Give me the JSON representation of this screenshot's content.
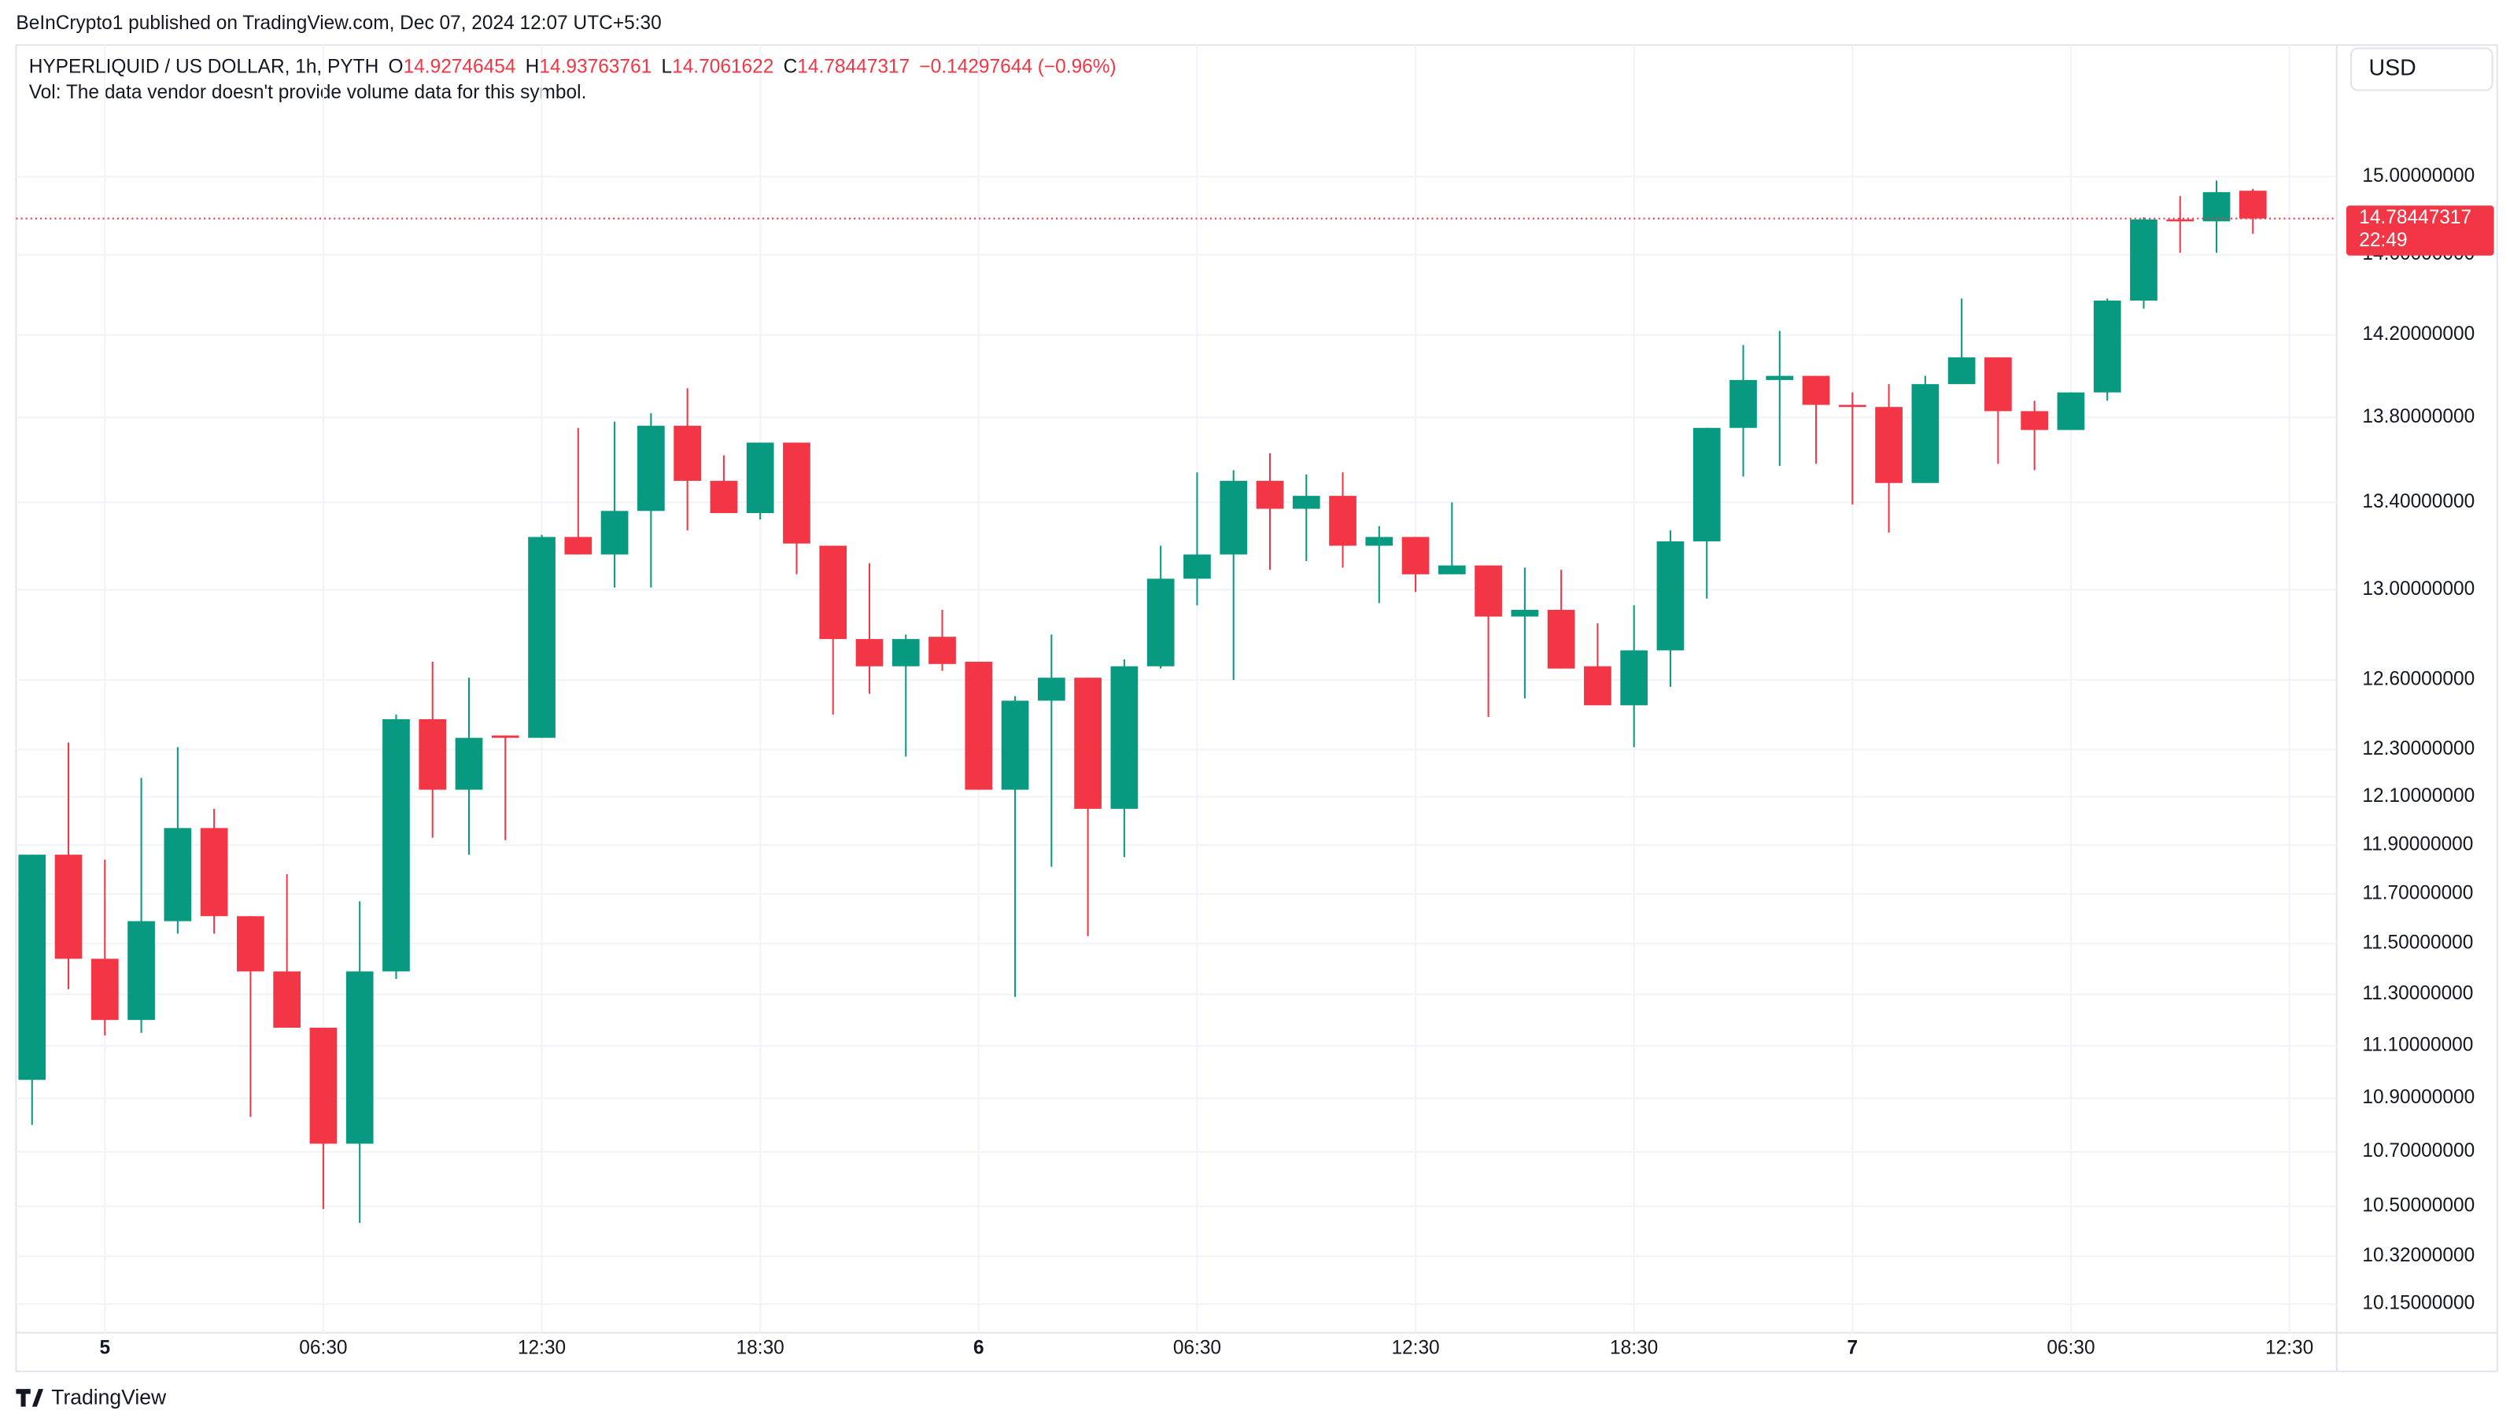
{
  "page": {
    "published": "BeInCrypto1 published on TradingView.com, Dec 07, 2024 12:07 UTC+5:30",
    "currency": "USD",
    "brand": "TradingView"
  },
  "chart_data": {
    "type": "candlestick",
    "symbol": "HYPERLIQUID / US DOLLAR, 1h, PYTH",
    "ohlc_labels": [
      "O",
      "H",
      "L",
      "C"
    ],
    "change": "−0.14297644 (−0.96%)",
    "volume_note": "Vol: The data vendor doesn't provide volume data for this symbol.",
    "countdown": "22:49",
    "up_color": "#089981",
    "down_color": "#f23645",
    "log_scale": true,
    "grid": true,
    "open": [
      10.97,
      11.86,
      11.44,
      11.2,
      11.59,
      11.97,
      11.61,
      11.39,
      11.17,
      10.73,
      11.39,
      12.43,
      12.13,
      12.36,
      12.35,
      13.24,
      13.16,
      13.36,
      13.76,
      13.5,
      13.35,
      13.68,
      13.2,
      12.78,
      12.66,
      12.79,
      12.68,
      12.13,
      12.51,
      12.61,
      12.05,
      12.66,
      13.05,
      13.16,
      13.5,
      13.37,
      13.43,
      13.2,
      13.24,
      13.07,
      13.11,
      12.88,
      12.91,
      12.66,
      12.49,
      12.73,
      13.22,
      13.75,
      13.98,
      14.0,
      13.86,
      13.85,
      13.49,
      13.96,
      14.09,
      13.83,
      13.74,
      13.92,
      14.37,
      14.78,
      14.77,
      14.92746454
    ],
    "high": [
      11.86,
      12.33,
      11.84,
      12.18,
      12.31,
      12.05,
      11.61,
      11.78,
      11.17,
      11.67,
      12.45,
      12.68,
      12.61,
      12.36,
      13.25,
      13.75,
      13.78,
      13.82,
      13.94,
      13.62,
      13.68,
      13.68,
      13.2,
      13.12,
      12.8,
      12.91,
      12.68,
      12.53,
      12.8,
      12.61,
      12.69,
      13.2,
      13.54,
      13.55,
      13.63,
      13.53,
      13.54,
      13.29,
      13.24,
      13.4,
      13.11,
      13.1,
      13.09,
      12.85,
      12.93,
      13.27,
      13.75,
      14.15,
      14.22,
      14.0,
      13.92,
      13.96,
      14.0,
      14.38,
      14.09,
      13.88,
      13.92,
      14.38,
      14.79,
      14.9,
      14.98,
      14.93763761
    ],
    "low": [
      10.8,
      11.32,
      11.14,
      11.15,
      11.54,
      11.54,
      10.83,
      11.17,
      10.49,
      10.44,
      11.36,
      11.93,
      11.86,
      11.92,
      12.35,
      13.16,
      13.01,
      13.01,
      13.27,
      13.35,
      13.32,
      13.07,
      12.45,
      12.54,
      12.27,
      12.64,
      12.13,
      11.29,
      11.81,
      11.53,
      11.85,
      12.65,
      12.93,
      12.6,
      13.09,
      13.13,
      13.1,
      12.94,
      12.99,
      13.07,
      12.44,
      12.52,
      12.65,
      12.49,
      12.31,
      12.57,
      12.96,
      13.52,
      13.57,
      13.58,
      13.39,
      13.26,
      13.49,
      13.96,
      13.58,
      13.55,
      13.74,
      13.88,
      14.33,
      14.61,
      14.61,
      14.7061622
    ],
    "close": [
      11.86,
      11.44,
      11.2,
      11.59,
      11.97,
      11.61,
      11.39,
      11.17,
      10.73,
      11.39,
      12.43,
      12.13,
      12.35,
      12.35,
      13.24,
      13.16,
      13.36,
      13.76,
      13.5,
      13.35,
      13.68,
      13.21,
      12.78,
      12.66,
      12.78,
      12.67,
      12.13,
      12.51,
      12.61,
      12.05,
      12.66,
      13.05,
      13.16,
      13.5,
      13.37,
      13.43,
      13.2,
      13.24,
      13.07,
      13.11,
      12.88,
      12.91,
      12.65,
      12.49,
      12.73,
      13.22,
      13.75,
      13.98,
      14.0,
      13.86,
      13.85,
      13.49,
      13.96,
      14.09,
      13.83,
      13.74,
      13.92,
      14.37,
      14.78,
      14.77,
      14.92,
      14.78447317
    ],
    "xlim": [
      -0.44,
      63.3
    ],
    "xticks": [
      {
        "value": 2,
        "label": "5"
      },
      {
        "value": 8,
        "label": "06:30"
      },
      {
        "value": 14,
        "label": "12:30"
      },
      {
        "value": 20,
        "label": "18:30"
      },
      {
        "value": 26,
        "label": "6"
      },
      {
        "value": 32,
        "label": "06:30"
      },
      {
        "value": 38,
        "label": "12:30"
      },
      {
        "value": 44,
        "label": "18:30"
      },
      {
        "value": 50,
        "label": "7"
      },
      {
        "value": 56,
        "label": "06:30"
      },
      {
        "value": 62,
        "label": "12:30"
      }
    ],
    "ylim": [
      10.05,
      15.7
    ],
    "yticks": [
      {
        "value": 15,
        "label": "15.00000000"
      },
      {
        "value": 14.6,
        "label": "14.60000000"
      },
      {
        "value": 14.2,
        "label": "14.20000000"
      },
      {
        "value": 13.8,
        "label": "13.80000000"
      },
      {
        "value": 13.4,
        "label": "13.40000000"
      },
      {
        "value": 13,
        "label": "13.00000000"
      },
      {
        "value": 12.6,
        "label": "12.60000000"
      },
      {
        "value": 12.3,
        "label": "12.30000000"
      },
      {
        "value": 12.1,
        "label": "12.10000000"
      },
      {
        "value": 11.9,
        "label": "11.90000000"
      },
      {
        "value": 11.7,
        "label": "11.70000000"
      },
      {
        "value": 11.5,
        "label": "11.50000000"
      },
      {
        "value": 11.3,
        "label": "11.30000000"
      },
      {
        "value": 11.1,
        "label": "11.10000000"
      },
      {
        "value": 10.9,
        "label": "10.90000000"
      },
      {
        "value": 10.7,
        "label": "10.70000000"
      },
      {
        "value": 10.5,
        "label": "10.50000000"
      },
      {
        "value": 10.32,
        "label": "10.32000000"
      },
      {
        "value": 10.15,
        "label": "10.15000000"
      }
    ]
  }
}
